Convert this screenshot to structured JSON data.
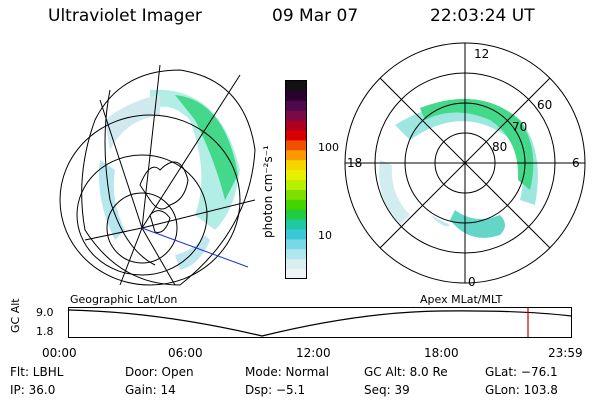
{
  "header": {
    "instrument": "Ultraviolet Imager",
    "date": "09 Mar 07",
    "time": "22:03:24 UT"
  },
  "colorbar": {
    "unit_label": "photon cm⁻²s⁻¹",
    "ticks": [
      "100",
      "10"
    ],
    "colors": [
      "#111111",
      "#2a0030",
      "#4b0a4b",
      "#7a0a45",
      "#b00020",
      "#d80000",
      "#f05000",
      "#f89a00",
      "#f6d400",
      "#e8f000",
      "#b8f000",
      "#7fe000",
      "#44d400",
      "#20cc40",
      "#20c8a0",
      "#3ac8d8",
      "#78d8e8",
      "#b0e6ee",
      "#d8eef0",
      "#eef4f4"
    ]
  },
  "polar_plot": {
    "labels": {
      "top": "12",
      "bottom": "0",
      "left": "18",
      "right": "6"
    },
    "lat_labels": [
      "60",
      "70",
      "80"
    ]
  },
  "altitude_panel": {
    "left_title": "Geographic Lat/Lon",
    "right_title": "Apex MLat/MLT",
    "axis_label": "GC Alt",
    "y_ticks": [
      "9.0",
      "1.8"
    ],
    "x_ticks": [
      "00:00",
      "06:00",
      "12:00",
      "18:00",
      "23:59"
    ],
    "current_marker_color": "#cc0000"
  },
  "info": {
    "row1": [
      "Flt: LBHL",
      "Door: Open",
      "Mode: Normal",
      "GC Alt: 8.0 Re",
      "GLat: −76.1"
    ],
    "row2": [
      "IP: 36.0",
      "Gain: 14",
      "Dsp:  −5.1",
      "Seq: 39",
      "GLon: 103.8"
    ]
  }
}
